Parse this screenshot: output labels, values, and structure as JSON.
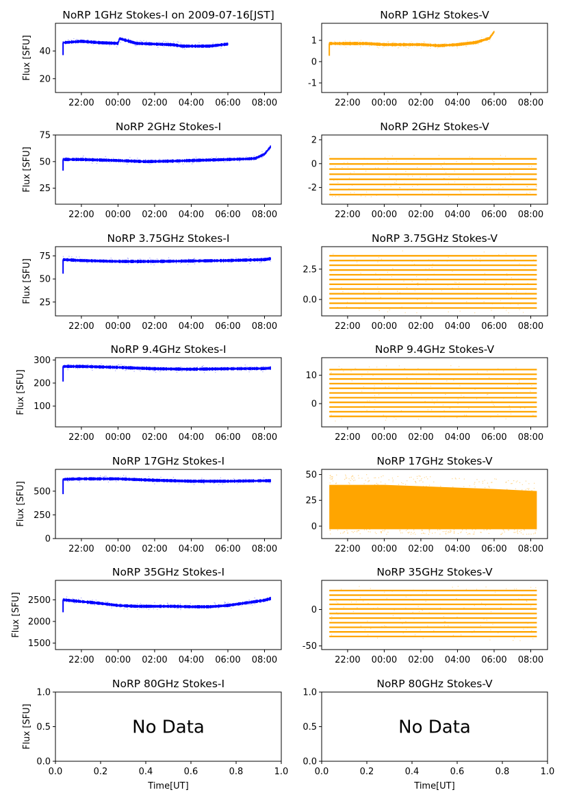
{
  "figure": {
    "xlabel": "Time[UT]",
    "ylabel": "Flux [SFU]",
    "time_ticks": [
      "22:00",
      "00:00",
      "02:00",
      "04:00",
      "06:00",
      "08:00"
    ],
    "empty_ticks": [
      "0.0",
      "0.2",
      "0.4",
      "0.6",
      "0.8",
      "1.0"
    ],
    "no_data_text": "No Data"
  },
  "colors": {
    "stokes_i": "#0000ff",
    "stokes_v": "#ffa500",
    "axes": "#000000"
  },
  "chart_data": [
    {
      "type": "scatter",
      "title": "NoRP 1GHz Stokes-I on 2009-07-16[JST]",
      "ylabel": "Flux [SFU]",
      "x_range": [
        "20:35",
        "08:55"
      ],
      "ylim": [
        10,
        60
      ],
      "yticks": [
        "20",
        "40"
      ],
      "series": [
        {
          "x": [
            "21:00",
            "22:00",
            "23:00",
            "00:00",
            "00:05",
            "01:00",
            "02:00",
            "03:00",
            "03:30",
            "04:00",
            "05:00",
            "06:00"
          ],
          "y": [
            46,
            47,
            46,
            45.5,
            49,
            45.5,
            45,
            44.5,
            43.5,
            43.5,
            43.5,
            45
          ]
        }
      ]
    },
    {
      "type": "scatter",
      "title": "NoRP 1GHz Stokes-V",
      "x_range": [
        "20:35",
        "08:55"
      ],
      "ylim": [
        -1.45,
        1.8
      ],
      "yticks": [
        "-1",
        "0",
        "1"
      ],
      "series": [
        {
          "x": [
            "21:00",
            "22:00",
            "23:00",
            "00:00",
            "01:00",
            "02:00",
            "03:00",
            "04:00",
            "05:00",
            "05:45",
            "06:00"
          ],
          "y": [
            0.85,
            0.85,
            0.85,
            0.8,
            0.8,
            0.8,
            0.75,
            0.8,
            0.9,
            1.1,
            1.4
          ]
        }
      ]
    },
    {
      "type": "scatter",
      "title": "NoRP 2GHz Stokes-I",
      "ylabel": "Flux [SFU]",
      "x_range": [
        "20:35",
        "08:55"
      ],
      "ylim": [
        10,
        75
      ],
      "yticks": [
        "25",
        "50",
        "75"
      ],
      "series": [
        {
          "x": [
            "21:00",
            "22:00",
            "00:00",
            "01:30",
            "03:00",
            "04:00",
            "05:00",
            "06:00",
            "07:00",
            "07:30",
            "08:00",
            "08:20"
          ],
          "y": [
            52,
            52,
            51,
            50,
            50.5,
            51,
            51.5,
            52,
            52.5,
            53,
            57,
            64
          ]
        }
      ]
    },
    {
      "type": "scatter",
      "title": "NoRP 2GHz Stokes-V",
      "x_range": [
        "20:35",
        "08:55"
      ],
      "ylim": [
        -3.4,
        2.4
      ],
      "yticks": [
        "-2",
        "0",
        "2"
      ],
      "series": [
        {
          "x": [
            "21:00",
            "08:20"
          ],
          "y_band": [
            -2.6,
            0.4
          ]
        }
      ]
    },
    {
      "type": "scatter",
      "title": "NoRP 3.75GHz Stokes-I",
      "ylabel": "Flux [SFU]",
      "x_range": [
        "20:35",
        "08:55"
      ],
      "ylim": [
        10,
        85
      ],
      "yticks": [
        "25",
        "50",
        "75"
      ],
      "series": [
        {
          "x": [
            "21:00",
            "22:00",
            "00:00",
            "02:00",
            "04:00",
            "06:00",
            "08:00",
            "08:20"
          ],
          "y": [
            71,
            70,
            69,
            69,
            69.5,
            70,
            71,
            72
          ]
        }
      ]
    },
    {
      "type": "scatter",
      "title": "NoRP 3.75GHz Stokes-V",
      "x_range": [
        "20:35",
        "08:55"
      ],
      "ylim": [
        -1.35,
        4.35
      ],
      "yticks": [
        "0.0",
        "2.5"
      ],
      "series": [
        {
          "x": [
            "21:00",
            "08:20"
          ],
          "y_band": [
            -0.7,
            3.6
          ]
        }
      ]
    },
    {
      "type": "scatter",
      "title": "NoRP 9.4GHz Stokes-I",
      "ylabel": "Flux [SFU]",
      "x_range": [
        "20:35",
        "08:55"
      ],
      "ylim": [
        10,
        310
      ],
      "yticks": [
        "100",
        "200",
        "300"
      ],
      "series": [
        {
          "x": [
            "21:00",
            "22:00",
            "00:00",
            "02:00",
            "04:00",
            "06:00",
            "08:00",
            "08:20"
          ],
          "y": [
            272,
            272,
            268,
            262,
            260,
            262,
            263,
            265
          ]
        }
      ]
    },
    {
      "type": "scatter",
      "title": "NoRP 9.4GHz Stokes-V",
      "x_range": [
        "20:35",
        "08:55"
      ],
      "ylim": [
        -8.2,
        16.2
      ],
      "yticks": [
        "0",
        "10"
      ],
      "series": [
        {
          "x": [
            "21:00",
            "08:20"
          ],
          "y_band": [
            -4.5,
            12
          ]
        }
      ]
    },
    {
      "type": "scatter",
      "title": "NoRP 17GHz Stokes-I",
      "ylabel": "Flux [SFU]",
      "x_range": [
        "20:35",
        "08:55"
      ],
      "ylim": [
        0,
        730
      ],
      "yticks": [
        "0",
        "250",
        "500"
      ],
      "series": [
        {
          "x": [
            "21:00",
            "22:00",
            "00:00",
            "02:00",
            "04:00",
            "06:00",
            "08:00",
            "08:20"
          ],
          "y": [
            625,
            630,
            630,
            615,
            605,
            605,
            610,
            610
          ]
        }
      ]
    },
    {
      "type": "scatter",
      "title": "NoRP 17GHz Stokes-V",
      "x_range": [
        "20:35",
        "08:55"
      ],
      "ylim": [
        -12,
        55
      ],
      "yticks": [
        "0",
        "25",
        "50"
      ],
      "series": [
        {
          "x": [
            "21:00",
            "00:00",
            "03:00",
            "06:00",
            "08:20"
          ],
          "y_band_upper": [
            40,
            40,
            38,
            36,
            34
          ],
          "y_band_lower": [
            -3,
            -3,
            -3,
            -3,
            -3
          ]
        }
      ]
    },
    {
      "type": "scatter",
      "title": "NoRP 35GHz Stokes-I",
      "ylabel": "Flux [SFU]",
      "x_range": [
        "20:35",
        "08:55"
      ],
      "ylim": [
        1350,
        2950
      ],
      "yticks": [
        "1500",
        "2000",
        "2500"
      ],
      "series": [
        {
          "x": [
            "21:00",
            "22:00",
            "23:00",
            "00:00",
            "01:00",
            "02:00",
            "03:00",
            "04:00",
            "05:00",
            "06:00",
            "07:00",
            "08:00",
            "08:20"
          ],
          "y": [
            2500,
            2460,
            2420,
            2370,
            2350,
            2350,
            2350,
            2340,
            2340,
            2370,
            2430,
            2490,
            2530
          ]
        }
      ]
    },
    {
      "type": "scatter",
      "title": "NoRP 35GHz Stokes-V",
      "x_range": [
        "20:35",
        "08:55"
      ],
      "ylim": [
        -55,
        40
      ],
      "yticks": [
        "-50",
        "0"
      ],
      "series": [
        {
          "x": [
            "21:00",
            "08:20"
          ],
          "y_band": [
            -37,
            26
          ]
        }
      ]
    },
    {
      "type": "empty",
      "title": "NoRP 80GHz Stokes-I",
      "ylabel": "Flux [SFU]",
      "xlim": [
        0,
        1
      ],
      "ylim": [
        0,
        1
      ],
      "yticks": [
        "0.0",
        "0.5",
        "1.0"
      ],
      "annotation": "No Data"
    },
    {
      "type": "empty",
      "title": "NoRP 80GHz Stokes-V",
      "xlim": [
        0,
        1
      ],
      "ylim": [
        0,
        1
      ],
      "yticks": [
        "0.0",
        "0.5",
        "1.0"
      ],
      "annotation": "No Data"
    }
  ]
}
